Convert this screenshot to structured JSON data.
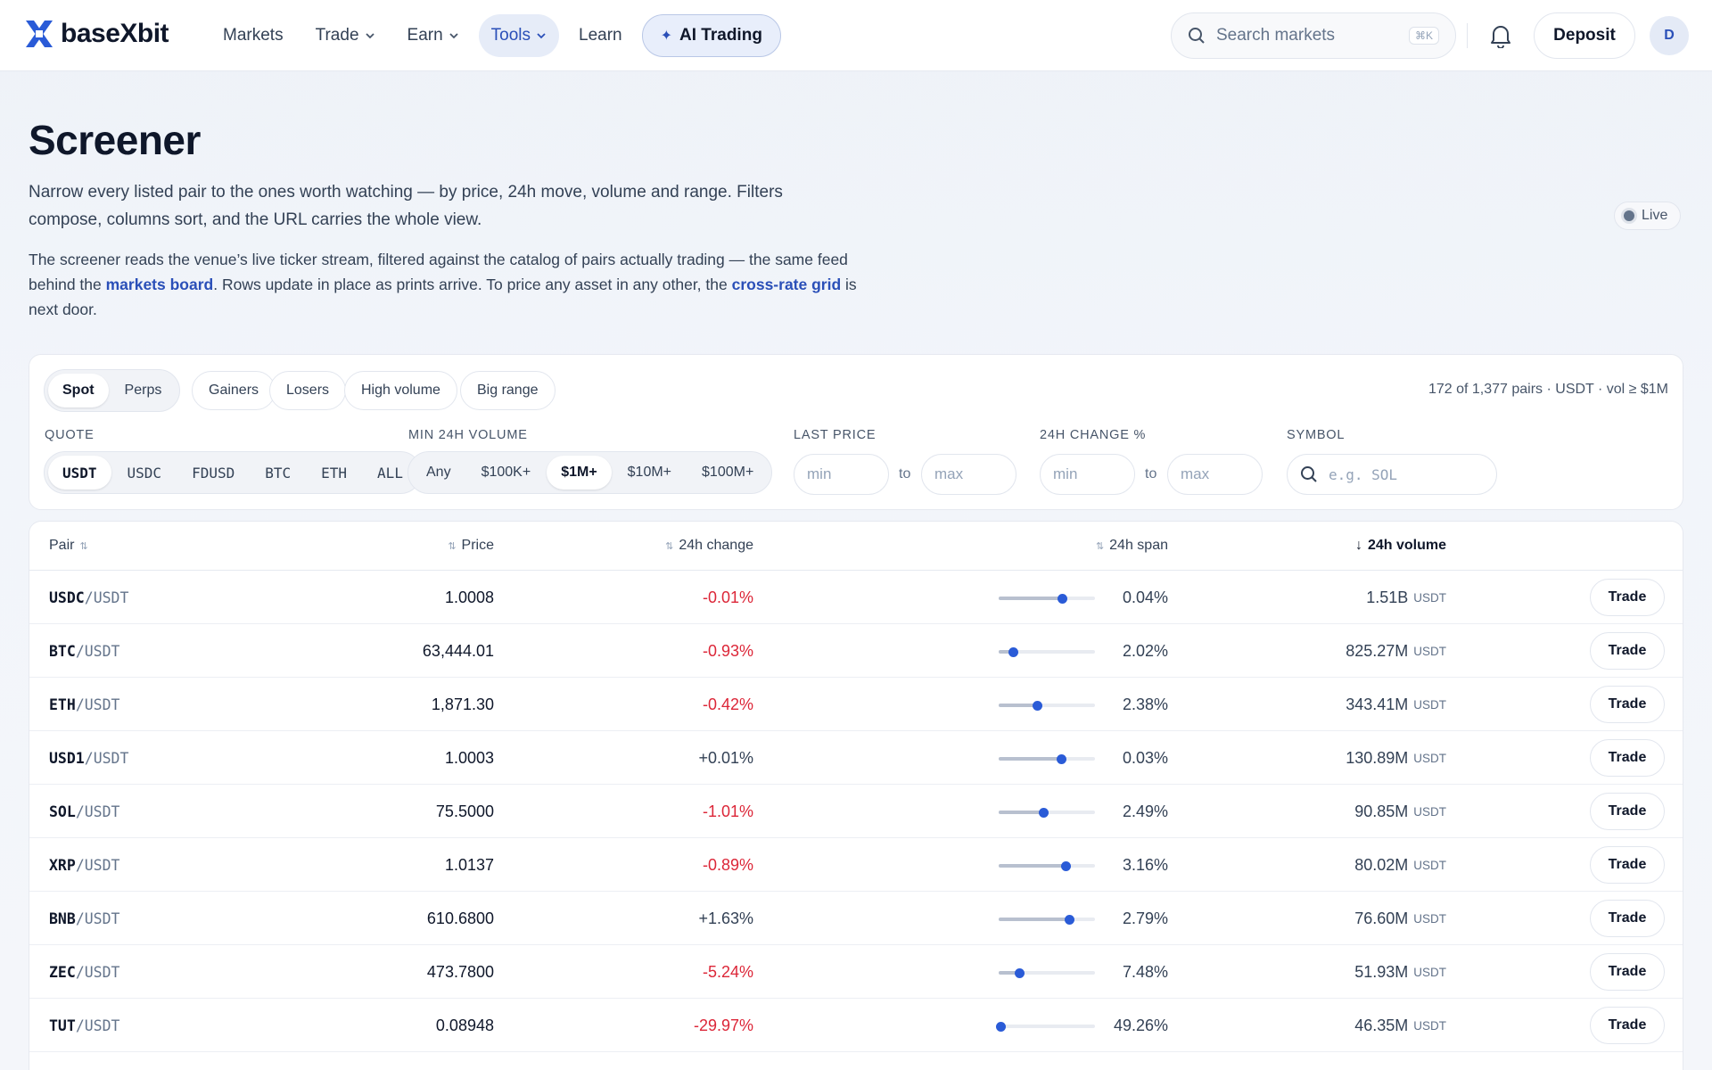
{
  "brand": {
    "name": "baseXbit"
  },
  "nav": {
    "items": [
      {
        "label": "Markets",
        "dropdown": false,
        "active": false
      },
      {
        "label": "Trade",
        "dropdown": true,
        "active": false
      },
      {
        "label": "Earn",
        "dropdown": true,
        "active": false
      },
      {
        "label": "Tools",
        "dropdown": true,
        "active": true
      },
      {
        "label": "Learn",
        "dropdown": false,
        "active": false
      }
    ],
    "ai": {
      "label": "AI Trading",
      "icon": "sparkle-icon"
    }
  },
  "header": {
    "search_placeholder": "Search markets",
    "search_shortcut": "⌘K",
    "deposit_label": "Deposit",
    "avatar_initial": "D"
  },
  "intro": {
    "title": "Screener",
    "lead": "Narrow every listed pair to the ones worth watching — by price, 24h move, volume and range. Filters compose, columns sort, and the URL carries the whole view.",
    "sub_1": "The screener reads the venue’s live ticker stream, filtered against the catalog of pairs actually trading — the same feed behind the ",
    "link_markets": "markets board",
    "sub_2": ". Rows update in place as prints arrive. To price any asset in any other, the ",
    "link_cross": "cross-rate grid",
    "sub_3": " is next door.",
    "live_label": "Live"
  },
  "filters": {
    "market_type": [
      {
        "label": "Spot",
        "on": true
      },
      {
        "label": "Perps",
        "on": false
      }
    ],
    "presets": [
      "Gainers",
      "Losers",
      "High volume",
      "Big range"
    ],
    "summary": "172 of 1,377 pairs · USDT · vol ≥ $1M",
    "quote_label": "QUOTE",
    "quote_options": [
      {
        "label": "USDT",
        "on": true
      },
      {
        "label": "USDC",
        "on": false
      },
      {
        "label": "FDUSD",
        "on": false
      },
      {
        "label": "BTC",
        "on": false
      },
      {
        "label": "ETH",
        "on": false
      },
      {
        "label": "ALL",
        "on": false
      }
    ],
    "volume_label": "MIN 24H VOLUME",
    "volume_options": [
      {
        "label": "Any",
        "on": false
      },
      {
        "label": "$100K+",
        "on": false
      },
      {
        "label": "$1M+",
        "on": true
      },
      {
        "label": "$10M+",
        "on": false
      },
      {
        "label": "$100M+",
        "on": false
      }
    ],
    "price_label": "LAST PRICE",
    "change_label": "24H CHANGE %",
    "symbol_label": "SYMBOL",
    "min_placeholder": "min",
    "max_placeholder": "max",
    "to_label": "to",
    "symbol_placeholder": "e.g. SOL"
  },
  "table": {
    "columns": {
      "pair": "Pair",
      "price": "Price",
      "change": "24h change",
      "span": "24h span",
      "volume": "24h volume"
    },
    "sorted_by": "volume",
    "trade_label": "Trade",
    "rows": [
      {
        "base": "USDC",
        "quote": "USDT",
        "price": "1.0008",
        "change": "-0.01%",
        "dir": "neg",
        "span_pos": 0.66,
        "span": "0.04%",
        "volume": "1.51B",
        "unit": "USDT"
      },
      {
        "base": "BTC",
        "quote": "USDT",
        "price": "63,444.01",
        "change": "-0.93%",
        "dir": "neg",
        "span_pos": 0.15,
        "span": "2.02%",
        "volume": "825.27M",
        "unit": "USDT"
      },
      {
        "base": "ETH",
        "quote": "USDT",
        "price": "1,871.30",
        "change": "-0.42%",
        "dir": "neg",
        "span_pos": 0.4,
        "span": "2.38%",
        "volume": "343.41M",
        "unit": "USDT"
      },
      {
        "base": "USD1",
        "quote": "USDT",
        "price": "1.0003",
        "change": "+0.01%",
        "dir": "pos",
        "span_pos": 0.65,
        "span": "0.03%",
        "volume": "130.89M",
        "unit": "USDT"
      },
      {
        "base": "SOL",
        "quote": "USDT",
        "price": "75.5000",
        "change": "-1.01%",
        "dir": "neg",
        "span_pos": 0.47,
        "span": "2.49%",
        "volume": "90.85M",
        "unit": "USDT"
      },
      {
        "base": "XRP",
        "quote": "USDT",
        "price": "1.0137",
        "change": "-0.89%",
        "dir": "neg",
        "span_pos": 0.7,
        "span": "3.16%",
        "volume": "80.02M",
        "unit": "USDT"
      },
      {
        "base": "BNB",
        "quote": "USDT",
        "price": "610.6800",
        "change": "+1.63%",
        "dir": "pos",
        "span_pos": 0.74,
        "span": "2.79%",
        "volume": "76.60M",
        "unit": "USDT"
      },
      {
        "base": "ZEC",
        "quote": "USDT",
        "price": "473.7800",
        "change": "-5.24%",
        "dir": "neg",
        "span_pos": 0.22,
        "span": "7.48%",
        "volume": "51.93M",
        "unit": "USDT"
      },
      {
        "base": "TUT",
        "quote": "USDT",
        "price": "0.08948",
        "change": "-29.97%",
        "dir": "neg",
        "span_pos": 0.02,
        "span": "49.26%",
        "volume": "46.35M",
        "unit": "USDT"
      }
    ]
  },
  "colors": {
    "accent": "#2a4fb8",
    "negative": "#dc2638",
    "dot": "#2a5bd7"
  }
}
